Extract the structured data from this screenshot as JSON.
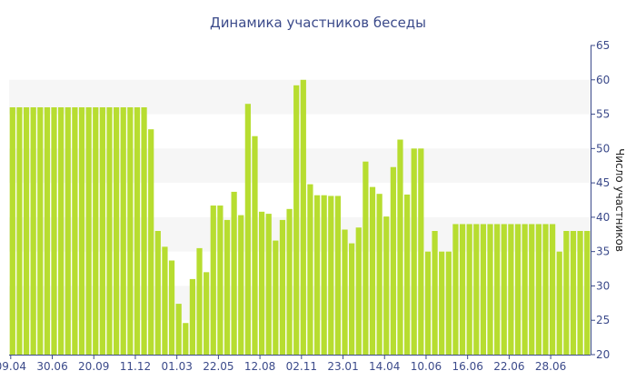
{
  "chart_data": {
    "type": "bar",
    "title": "Динамика участников беседы",
    "xlabel": "",
    "ylabel": "Число участников",
    "ylim": [
      20,
      65
    ],
    "y_ticks": [
      20,
      25,
      30,
      35,
      40,
      45,
      50,
      55,
      60,
      65
    ],
    "y_axis_side": "right",
    "grid": "alternating horizontal bands",
    "colors": {
      "bar": "#b7dd30",
      "band": "#f6f6f6",
      "text": "#3b4a8a",
      "axis": "#3b4a8a"
    },
    "x_tick_labels": [
      {
        "index": 0,
        "label": "09.04"
      },
      {
        "index": 6,
        "label": "30.06"
      },
      {
        "index": 12,
        "label": "20.09"
      },
      {
        "index": 18,
        "label": "11.12"
      },
      {
        "index": 24,
        "label": "01.03"
      },
      {
        "index": 30,
        "label": "22.05"
      },
      {
        "index": 36,
        "label": "12.08"
      },
      {
        "index": 42,
        "label": "02.11"
      },
      {
        "index": 48,
        "label": "23.01"
      },
      {
        "index": 54,
        "label": "14.04"
      },
      {
        "index": 60,
        "label": "10.06"
      },
      {
        "index": 66,
        "label": "16.06"
      },
      {
        "index": 72,
        "label": "22.06"
      },
      {
        "index": 78,
        "label": "28.06"
      }
    ],
    "values": [
      56,
      56,
      56,
      56,
      56,
      56,
      56,
      56,
      56,
      56,
      56,
      56,
      56,
      56,
      56,
      56,
      56,
      56,
      56,
      56,
      52.8,
      38,
      35.7,
      33.7,
      27.4,
      24.6,
      31,
      35.5,
      32,
      41.7,
      41.7,
      39.6,
      43.7,
      40.3,
      56.5,
      51.8,
      40.8,
      40.5,
      36.6,
      39.6,
      41.2,
      59.2,
      60,
      44.8,
      43.2,
      43.2,
      43.1,
      43.1,
      38.2,
      36.2,
      38.5,
      48.1,
      44.4,
      43.4,
      40.1,
      47.3,
      51.3,
      43.3,
      50,
      50,
      35,
      38,
      35,
      35,
      39,
      39,
      39,
      39,
      39,
      39,
      39,
      39,
      39,
      39,
      39,
      39,
      39,
      39,
      39,
      35,
      38,
      38,
      38,
      38
    ]
  }
}
